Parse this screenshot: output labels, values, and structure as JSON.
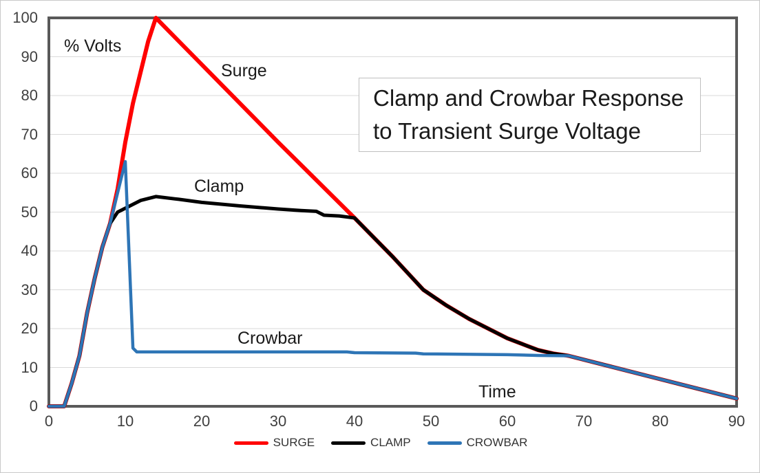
{
  "figure": {
    "title_box": {
      "text": "Clamp and Crowbar Response to Transient Surge Voltage"
    },
    "annotations": {
      "y_axis": "% Volts",
      "x_axis": "Time",
      "surge": "Surge",
      "clamp": "Clamp",
      "crowbar": "Crowbar"
    }
  },
  "chart_data": {
    "type": "line",
    "title": "Clamp and Crowbar Response to Transient Surge Voltage",
    "xlabel": "Time",
    "ylabel": "% Volts",
    "xlim": [
      0,
      90
    ],
    "ylim": [
      0,
      100
    ],
    "x_ticks": [
      0,
      10,
      20,
      30,
      40,
      50,
      60,
      70,
      80,
      90
    ],
    "y_ticks": [
      0,
      10,
      20,
      30,
      40,
      50,
      60,
      70,
      80,
      90,
      100
    ],
    "grid": "horizontal-only",
    "legend": {
      "position": "bottom-center",
      "entries": [
        "SURGE",
        "CLAMP",
        "CROWBAR"
      ]
    },
    "series": [
      {
        "name": "SURGE",
        "color": "#ff0000",
        "stroke_width": 6,
        "points": [
          [
            0,
            0
          ],
          [
            2,
            0
          ],
          [
            3,
            6
          ],
          [
            4,
            13
          ],
          [
            5,
            24
          ],
          [
            6,
            33
          ],
          [
            7,
            41
          ],
          [
            8,
            47
          ],
          [
            9,
            56
          ],
          [
            10,
            68
          ],
          [
            11,
            78
          ],
          [
            12,
            86
          ],
          [
            13,
            94
          ],
          [
            14,
            100
          ],
          [
            20,
            88
          ],
          [
            30,
            68
          ],
          [
            40,
            48.5
          ],
          [
            45,
            38.5
          ],
          [
            49,
            30
          ],
          [
            52,
            26
          ],
          [
            55,
            22.5
          ],
          [
            58,
            19.5
          ],
          [
            60,
            17.5
          ],
          [
            62,
            16
          ],
          [
            64,
            14.5
          ],
          [
            66,
            13.6
          ],
          [
            68,
            13
          ],
          [
            80,
            7
          ],
          [
            90,
            2
          ]
        ]
      },
      {
        "name": "CLAMP",
        "color": "#000000",
        "stroke_width": 5,
        "points": [
          [
            0,
            0
          ],
          [
            2,
            0
          ],
          [
            3,
            6
          ],
          [
            4,
            13
          ],
          [
            5,
            24
          ],
          [
            6,
            33
          ],
          [
            7,
            41
          ],
          [
            8,
            47
          ],
          [
            9,
            50
          ],
          [
            10,
            51
          ],
          [
            12,
            53
          ],
          [
            14,
            54
          ],
          [
            17,
            53.3
          ],
          [
            20,
            52.5
          ],
          [
            25,
            51.6
          ],
          [
            30,
            50.8
          ],
          [
            33,
            50.4
          ],
          [
            35,
            50.2
          ],
          [
            36,
            49.2
          ],
          [
            38,
            49
          ],
          [
            40,
            48.5
          ],
          [
            45,
            38.5
          ],
          [
            49,
            30
          ],
          [
            52,
            26
          ],
          [
            55,
            22.5
          ],
          [
            58,
            19.5
          ],
          [
            60,
            17.5
          ],
          [
            62,
            16
          ],
          [
            64,
            14.5
          ],
          [
            66,
            13.6
          ],
          [
            68,
            13
          ],
          [
            80,
            7
          ],
          [
            90,
            2
          ]
        ]
      },
      {
        "name": "CROWBAR",
        "color": "#2e75b6",
        "stroke_width": 4.5,
        "points": [
          [
            0,
            0
          ],
          [
            2,
            0
          ],
          [
            3,
            6
          ],
          [
            4,
            13
          ],
          [
            5,
            24
          ],
          [
            6,
            33
          ],
          [
            7,
            41
          ],
          [
            8,
            47
          ],
          [
            9,
            55
          ],
          [
            10,
            63
          ],
          [
            11,
            15
          ],
          [
            11.5,
            14
          ],
          [
            20,
            14
          ],
          [
            30,
            14
          ],
          [
            39,
            14
          ],
          [
            40,
            13.8
          ],
          [
            48,
            13.7
          ],
          [
            49,
            13.5
          ],
          [
            60,
            13.3
          ],
          [
            64,
            13.1
          ],
          [
            68,
            13
          ],
          [
            80,
            7
          ],
          [
            90,
            2
          ]
        ]
      }
    ],
    "style": {
      "plot_border_color": "#595959",
      "plot_border_width": 4,
      "gridline_color": "#d9d9d9",
      "tick_label_color": "#404040",
      "outer_border_color": "#c9c9c9",
      "background": "#ffffff"
    }
  }
}
